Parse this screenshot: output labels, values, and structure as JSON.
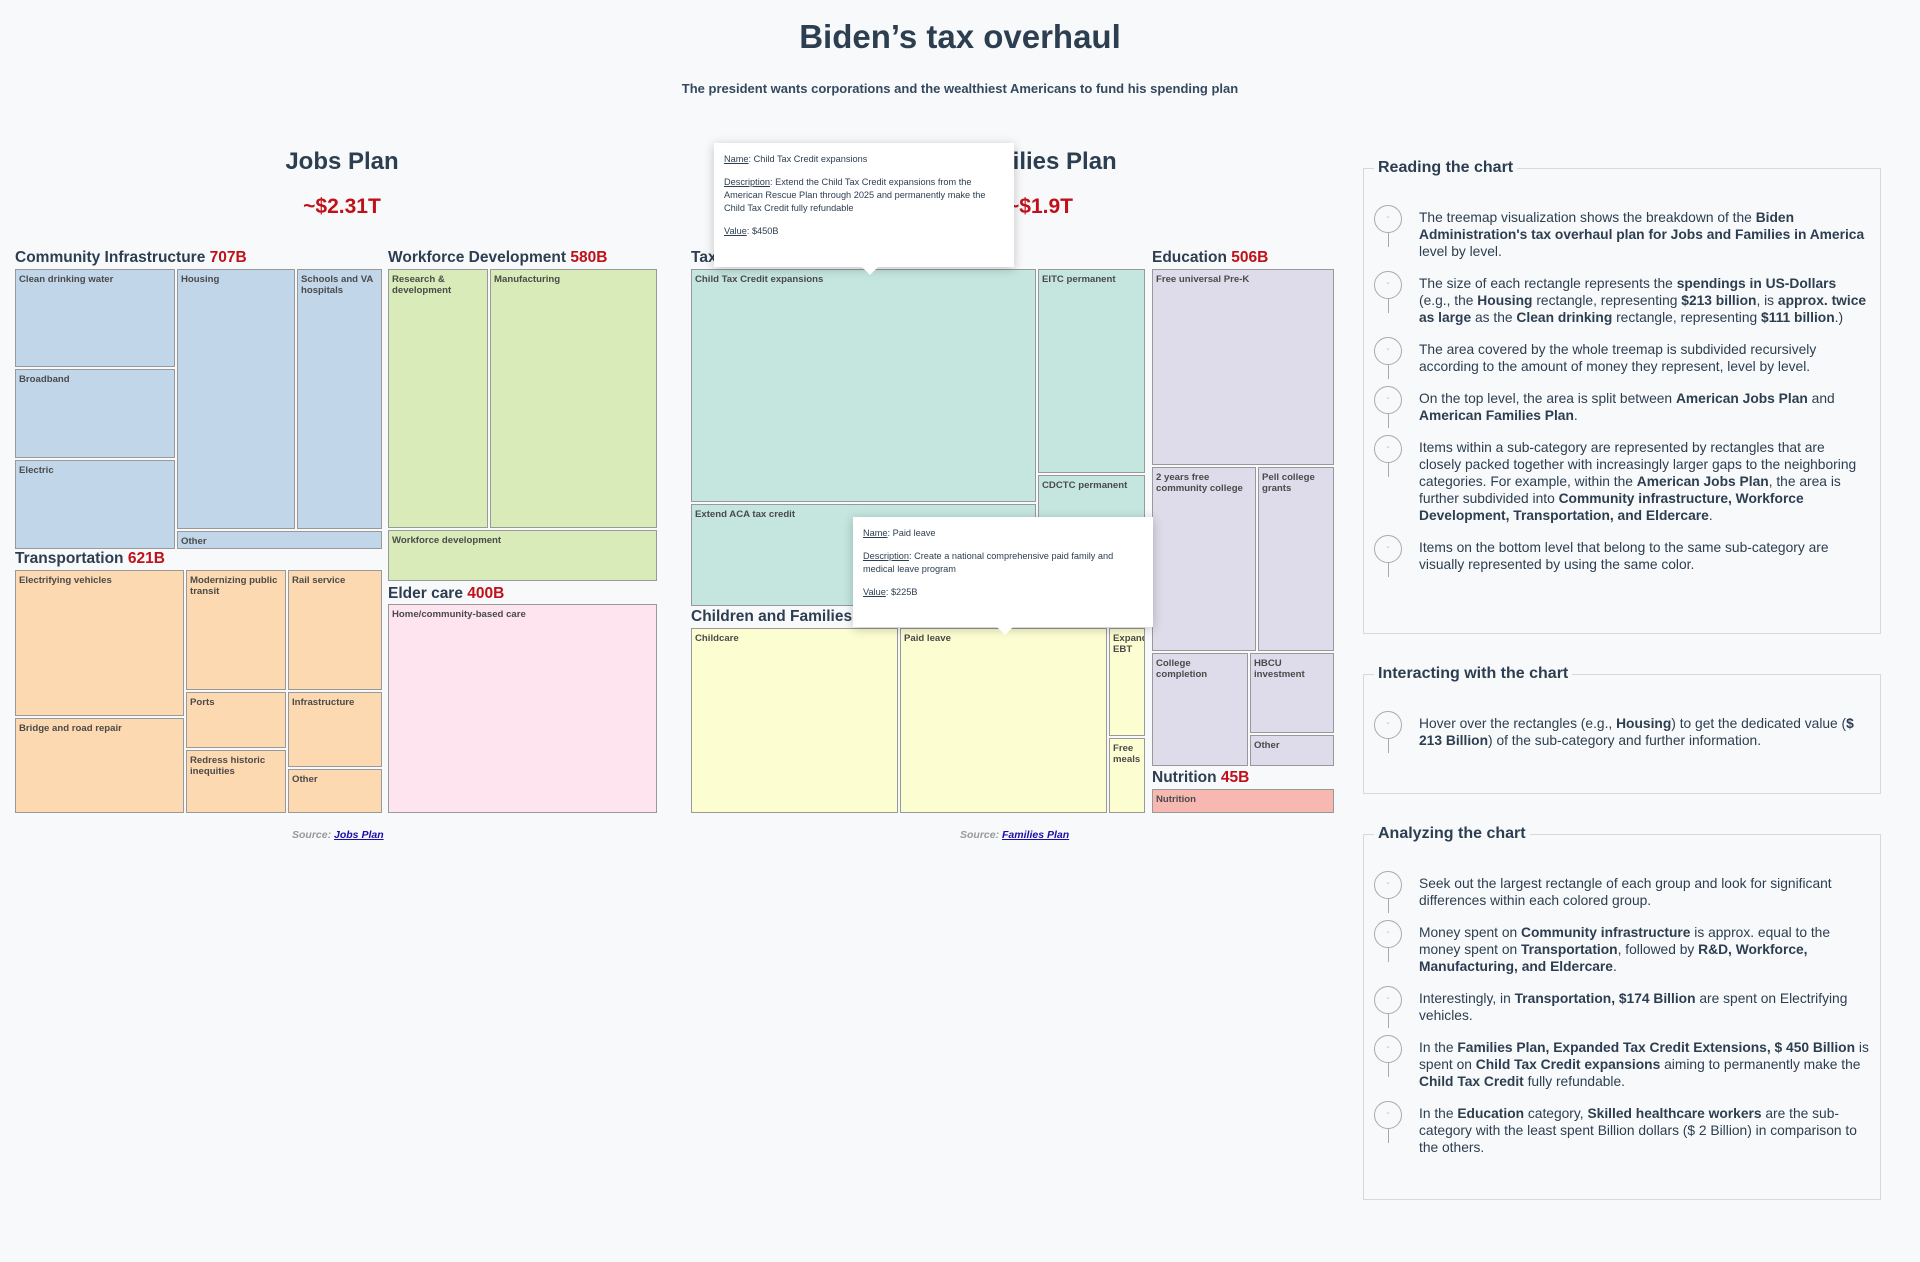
{
  "title": "Biden’s tax overhaul",
  "subtitle": "The president wants corporations and the wealthiest Americans to fund his spending plan",
  "chart_data": {
    "type": "treemap",
    "unit": "Billion US$",
    "plans": [
      {
        "name": "Jobs Plan",
        "total_label": "~$2.31T",
        "source_label": "Source:",
        "source_link": "Jobs Plan",
        "categories": [
          {
            "name": "Community Infrastructure",
            "amount_label": "707B",
            "color": "#c2d6ea",
            "items": [
              {
                "label": "Clean drinking water",
                "value": 111
              },
              {
                "label": "Broadband",
                "value": 100
              },
              {
                "label": "Electric",
                "value": 100
              },
              {
                "label": "Housing",
                "value": 213
              },
              {
                "label": "Schools and VA hospitals",
                "value": 137
              },
              {
                "label": "Other",
                "value": 46
              }
            ]
          },
          {
            "name": "Workforce Development",
            "amount_label": "580B",
            "color": "#d9ebb8",
            "items": [
              {
                "label": "Research & development",
                "value": 180
              },
              {
                "label": "Manufacturing",
                "value": 300
              },
              {
                "label": "Workforce development",
                "value": 100
              }
            ]
          },
          {
            "name": "Transportation",
            "amount_label": "621B",
            "color": "#fcd9b0",
            "items": [
              {
                "label": "Electrifying vehicles",
                "value": 174
              },
              {
                "label": "Bridge and road repair",
                "value": 115
              },
              {
                "label": "Modernizing public transit",
                "value": 85
              },
              {
                "label": "Ports",
                "value": 42
              },
              {
                "label": "Redress historic inequities",
                "value": 45
              },
              {
                "label": "Rail service",
                "value": 80
              },
              {
                "label": "Infrastructure",
                "value": 50
              },
              {
                "label": "Other",
                "value": 30
              }
            ]
          },
          {
            "name": "Elder care",
            "amount_label": "400B",
            "color": "#fde4ef",
            "items": [
              {
                "label": "Home/community-based care",
                "value": 400
              }
            ]
          }
        ]
      },
      {
        "name": "Families Plan",
        "total_label": "~$1.9T",
        "source_label": "Source:",
        "source_link": "Families Plan",
        "categories": [
          {
            "name": "Tax Credit",
            "amount_label": "",
            "color": "#c5e5df",
            "items": [
              {
                "label": "Child Tax Credit expansions",
                "value": 450
              },
              {
                "label": "Extend ACA tax credit",
                "value": 163
              },
              {
                "label": "EITC permanent",
                "value": 131
              },
              {
                "label": "CDCTC permanent",
                "value": 13
              }
            ]
          },
          {
            "name": "Children and Families",
            "amount_label": "",
            "color": "#fdfdd2",
            "items": [
              {
                "label": "Childcare",
                "value": 225
              },
              {
                "label": "Paid leave",
                "value": 225
              },
              {
                "label": "Expand EBT",
                "value": 30
              },
              {
                "label": "Free meals",
                "value": 15
              }
            ]
          },
          {
            "name": "Education",
            "amount_label": "506B",
            "color": "#dedbea",
            "items": [
              {
                "label": "Free universal Pre-K",
                "value": 200
              },
              {
                "label": "2 years free community college",
                "value": 109
              },
              {
                "label": "Pell college grants",
                "value": 85
              },
              {
                "label": "College completion",
                "value": 62
              },
              {
                "label": "HBCU investment",
                "value": 46
              },
              {
                "label": "Other",
                "value": 4
              }
            ]
          },
          {
            "name": "Nutrition",
            "amount_label": "45B",
            "color": "#f7b8b2",
            "items": [
              {
                "label": "Nutrition",
                "value": 45
              }
            ]
          }
        ]
      }
    ],
    "tooltips": [
      {
        "name_label": "Name",
        "name": "Child Tax Credit expansions",
        "desc_label": "Description",
        "description": "Extend the Child Tax Credit expansions from the American Rescue Plan through 2025 and permanently make the Child Tax Credit fully refundable",
        "value_label": "Value",
        "value": "$450B"
      },
      {
        "name_label": "Name",
        "name": "Paid leave",
        "desc_label": "Description",
        "description": "Create a national comprehensive paid family and medical leave program",
        "value_label": "Value",
        "value": "$225B"
      }
    ]
  },
  "panels": {
    "reading": {
      "title": "Reading the chart",
      "items": [
        "The treemap visualization shows the breakdown of the <b>Biden Administration's tax overhaul plan for Jobs and Families in America</b> level by level.",
        "The size of each rectangle represents the <b>spendings in US-Dollars</b> (e.g., the <b>Housing</b> rectangle, representing <b>$213 billion</b>, is <b>approx. twice as large</b> as the <b>Clean drinking</b> rectangle, representing <b>$111 billion</b>.)",
        "The area covered by the whole treemap is subdivided recursively according to the amount of money they represent, level by level.",
        "On the top level, the area is split between <b>American Jobs Plan</b> and <b>American Families Plan</b>.",
        "Items within a sub-category are represented by rectangles that are closely packed together with increasingly larger gaps to the neighboring categories. For example, within the <b>American Jobs Plan</b>, the area is further subdivided into <b>Community infrastructure, Workforce Development, Transportation, and Eldercare</b>.",
        "Items on the bottom level that belong to the same sub-category are visually represented by using the same color."
      ]
    },
    "interacting": {
      "title": "Interacting with the chart",
      "items": [
        "Hover over the rectangles (e.g., <b>Housing</b>) to get the dedicated value (<b>$ 213 Billion</b>) of the sub-category and further information."
      ]
    },
    "analyzing": {
      "title": "Analyzing the chart",
      "items": [
        "Seek out the largest rectangle of each group and look for significant differences within each colored group.",
        "Money spent on <b>Community infrastructure</b> is approx. equal to the money spent on <b>Transportation</b>, followed by <b>R&D, Workforce, Manufacturing, and Eldercare</b>.",
        "Interestingly, in <b>Transportation, $174 Billion</b> are spent on Electrifying vehicles.",
        "In the <b>Families Plan, Expanded Tax Credit Extensions, $ 450 Billion</b> is spent on <b>Child Tax Credit expansions</b> aiming to permanently make the <b>Child Tax Credit</b> fully refundable.",
        "In the <b>Education</b> category, <b>Skilled healthcare workers</b> are the sub-category with the least spent Billion dollars ($ 2 Billion) in comparison to the others."
      ]
    }
  }
}
